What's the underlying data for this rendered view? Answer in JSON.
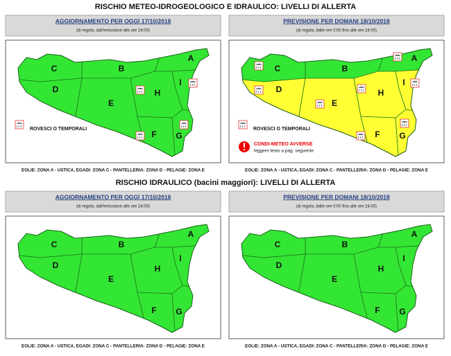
{
  "sections": [
    {
      "title": "RISCHIO METEO-IDROGEOLOGICO E IDRAULICO: LIVELLI DI ALLERTA",
      "panels": [
        {
          "header": "AGGIORNAMENTO PER OGGI 17/10/2018",
          "subtitle": "(di regola, dall'emissione alle ore 24:00)",
          "zones": [
            {
              "label": "A",
              "color": "#33e633"
            },
            {
              "label": "B",
              "color": "#33e633"
            },
            {
              "label": "C",
              "color": "#33e633"
            },
            {
              "label": "D",
              "color": "#33e633"
            },
            {
              "label": "E",
              "color": "#33e633"
            },
            {
              "label": "F",
              "color": "#33e633"
            },
            {
              "label": "G",
              "color": "#33e633"
            },
            {
              "label": "H",
              "color": "#33e633"
            },
            {
              "label": "I",
              "color": "#33e633"
            }
          ],
          "legend": "ROVESCI O TEMPORALI",
          "footer": "EOLIE: ZONA A - USTICA, EGADI: ZONA C - PANTELLERIA: ZONA D - PELAGIE: ZONA E"
        },
        {
          "header": "PREVISIONE PER DOMANI 18/10/2018",
          "subtitle": "(di regola, dalle ore 0:00 fino alle ore 24:00)",
          "zones": [
            {
              "label": "A",
              "color": "#33e633"
            },
            {
              "label": "B",
              "color": "#33e633"
            },
            {
              "label": "C",
              "color": "#33e633"
            },
            {
              "label": "D",
              "color": "#ffff33"
            },
            {
              "label": "E",
              "color": "#ffff33"
            },
            {
              "label": "F",
              "color": "#ffff33"
            },
            {
              "label": "G",
              "color": "#ffff33"
            },
            {
              "label": "H",
              "color": "#ffff33"
            },
            {
              "label": "I",
              "color": "#ffff33"
            }
          ],
          "legend": "ROVESCI O TEMPORALI",
          "warning": {
            "title": "CONDI-METEO AVVERSE",
            "note": "leggere testo a pag. seguente"
          },
          "footer": "EOLIE: ZONA A - USTICA, EGADI: ZONA C - PANTELLERIA: ZONA D - PELAGIE: ZONA E"
        }
      ]
    },
    {
      "title": "RISCHIO IDRAULICO (bacini maggiori): LIVELLI DI ALLERTA",
      "panels": [
        {
          "header": "AGGIORNAMENTO PER OGGI 17/10/2018",
          "subtitle": "(di regola, dall'emissione alle ore 24:00)",
          "zones": [
            {
              "label": "A",
              "color": "#33e633"
            },
            {
              "label": "B",
              "color": "#33e633"
            },
            {
              "label": "C",
              "color": "#33e633"
            },
            {
              "label": "D",
              "color": "#33e633"
            },
            {
              "label": "E",
              "color": "#33e633"
            },
            {
              "label": "F",
              "color": "#33e633"
            },
            {
              "label": "G",
              "color": "#33e633"
            },
            {
              "label": "H",
              "color": "#33e633"
            },
            {
              "label": "I",
              "color": "#33e633"
            }
          ],
          "footer": "EOLIE: ZONA A - USTICA, EGADI: ZONA C - PANTELLERIA: ZONA D - PELAGIE: ZONA E"
        },
        {
          "header": "PREVISIONE PER DOMANI 18/10/2018",
          "subtitle": "(di regola, dalle ore 0:00 fino alle ore 24:00)",
          "zones": [
            {
              "label": "A",
              "color": "#33e633"
            },
            {
              "label": "B",
              "color": "#33e633"
            },
            {
              "label": "C",
              "color": "#33e633"
            },
            {
              "label": "D",
              "color": "#33e633"
            },
            {
              "label": "E",
              "color": "#33e633"
            },
            {
              "label": "F",
              "color": "#33e633"
            },
            {
              "label": "G",
              "color": "#33e633"
            },
            {
              "label": "H",
              "color": "#33e633"
            },
            {
              "label": "I",
              "color": "#33e633"
            }
          ],
          "footer": "EOLIE: ZONA A - USTICA, EGADI: ZONA C - PANTELLERIA: ZONA D - PELAGIE: ZONA E"
        }
      ]
    }
  ]
}
